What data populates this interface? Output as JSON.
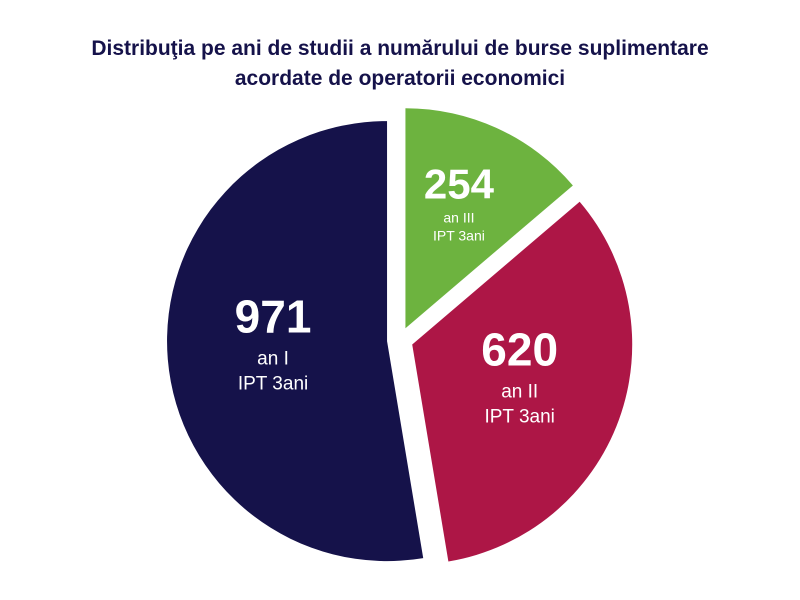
{
  "chart_data": {
    "type": "pie",
    "title": [
      "Distribuţia pe ani de studii a numărului de burse suplimentare",
      "acordate de operatorii economici"
    ],
    "slices": [
      {
        "value": 254,
        "line1": "an III",
        "line2": "IPT 3ani",
        "color": "#6db33f"
      },
      {
        "value": 620,
        "line1": "an II",
        "line2": "IPT 3ani",
        "color": "#ad1646"
      },
      {
        "value": 971,
        "line1": "an I",
        "line2": "IPT 3ani",
        "color": "#15124a"
      }
    ],
    "legend": "none"
  }
}
